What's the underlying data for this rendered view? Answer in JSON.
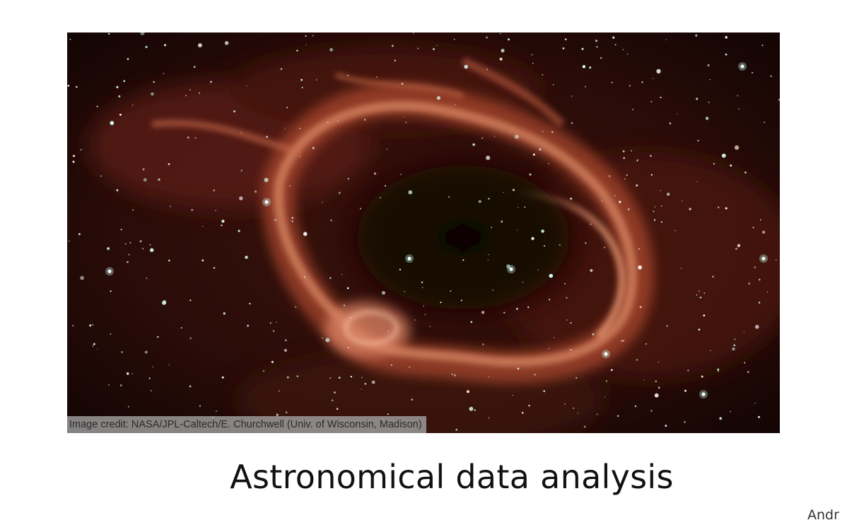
{
  "slide": {
    "image_alt": "nebula",
    "image_credit": "Image credit: NASA/JPL-Caltech/E. Churchwell (Univ. of Wisconsin, Madison)",
    "title": "Astronomical data analysis",
    "author_fragment": "Andr"
  },
  "colors": {
    "background": "#ffffff",
    "space": "#150806",
    "nebula_glow": "#e08a62",
    "star": "#d8fff4"
  }
}
